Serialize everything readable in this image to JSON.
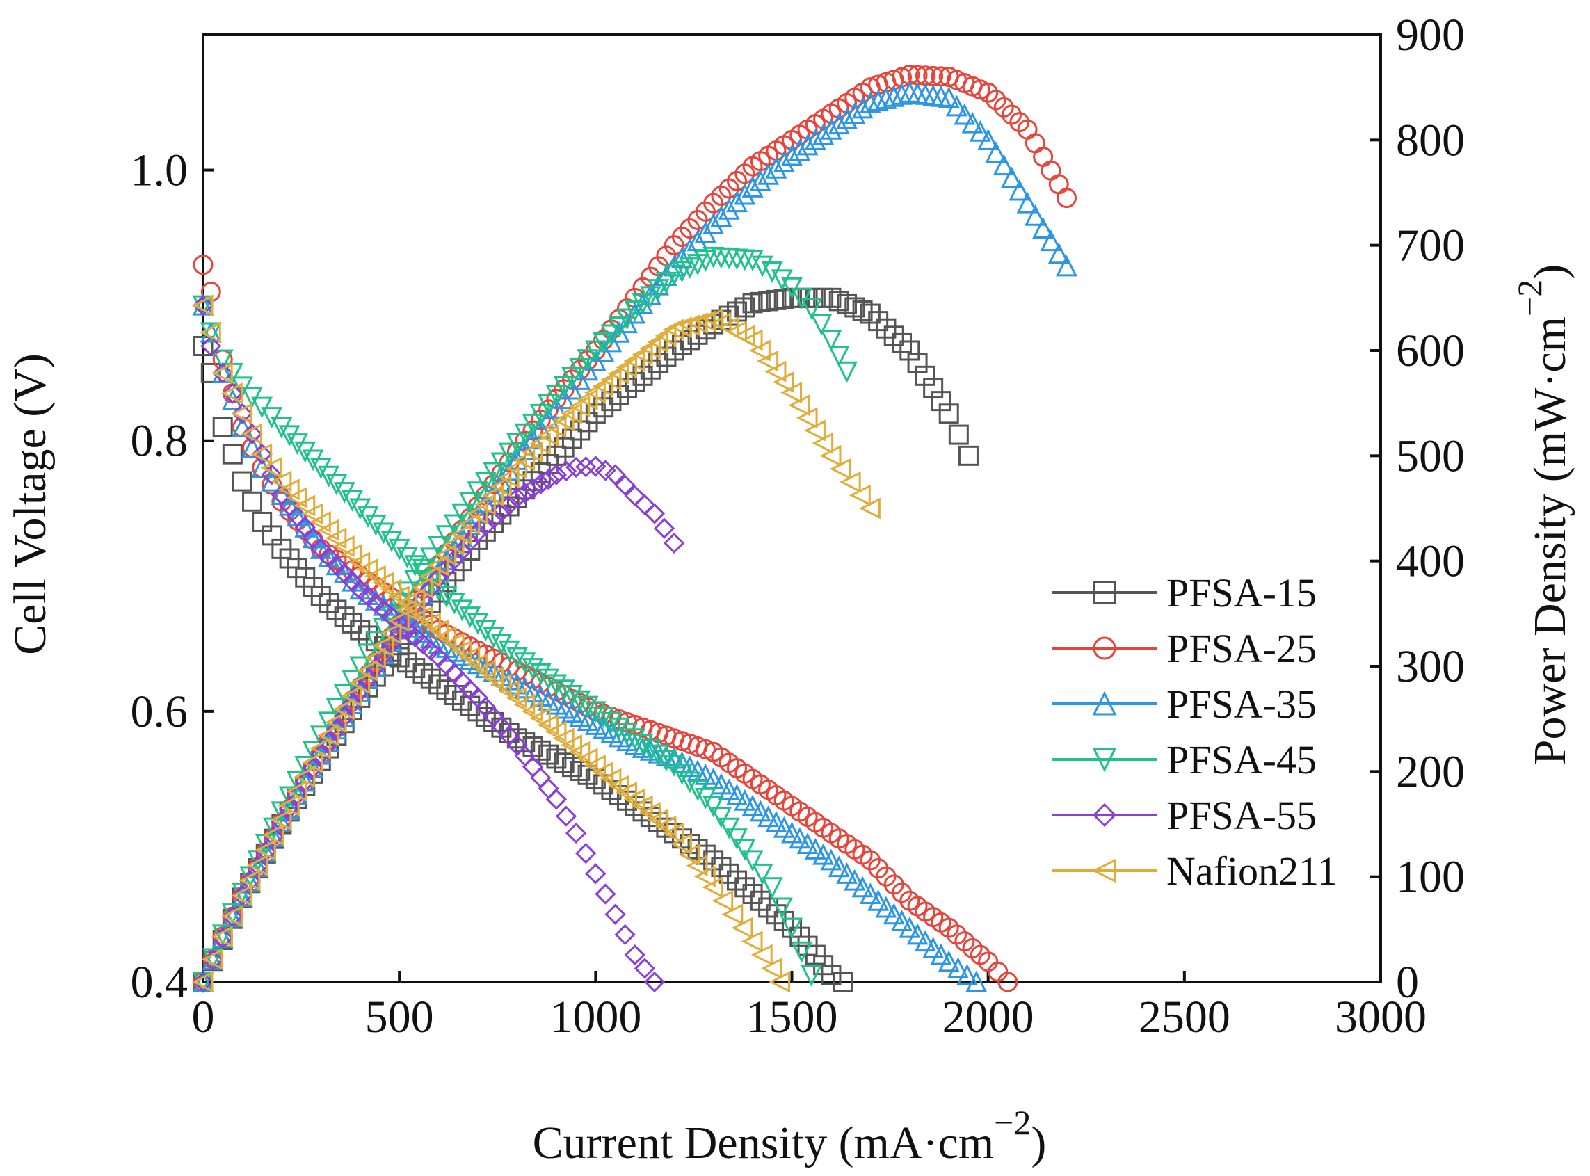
{
  "chart_data": {
    "type": "scatter",
    "x_axis": {
      "label_main": "Current Density (mA·cm",
      "label_sup": "−2",
      "label_tail": ")",
      "range": [
        0,
        3000
      ],
      "ticks": [
        "0",
        "500",
        "1000",
        "1500",
        "2000",
        "2500",
        "3000"
      ],
      "tick_values": [
        0,
        500,
        1000,
        1500,
        2000,
        2500,
        3000
      ]
    },
    "y_left": {
      "label": "Cell Voltage (V)",
      "range": [
        0.4,
        1.1
      ],
      "ticks": [
        "0.4",
        "0.6",
        "0.8",
        "1.0"
      ],
      "tick_values": [
        0.4,
        0.6,
        0.8,
        1.0
      ]
    },
    "y_right": {
      "label_main": "Power Density (mW·cm",
      "label_sup": "−2",
      "label_tail": ")",
      "range": [
        0,
        900
      ],
      "ticks": [
        "0",
        "100",
        "200",
        "300",
        "400",
        "500",
        "600",
        "700",
        "800",
        "900"
      ],
      "tick_values": [
        0,
        100,
        200,
        300,
        400,
        500,
        600,
        700,
        800,
        900
      ]
    },
    "grid": false,
    "legend_position": "right-middle",
    "series": [
      {
        "name": "PFSA-15",
        "color": "#555555",
        "marker": "square",
        "polarization": {
          "x": [
            0,
            20,
            50,
            100,
            150,
            200,
            300,
            400,
            500,
            600,
            700,
            800,
            900,
            1000,
            1100,
            1200,
            1300,
            1400,
            1500,
            1560,
            1600,
            1630
          ],
          "y": [
            0.87,
            0.85,
            0.81,
            0.77,
            0.74,
            0.72,
            0.685,
            0.66,
            0.64,
            0.62,
            0.6,
            0.58,
            0.565,
            0.55,
            0.53,
            0.51,
            0.49,
            0.465,
            0.44,
            0.42,
            0.405,
            0.4
          ]
        },
        "power": {
          "x": [
            0,
            50,
            100,
            200,
            300,
            400,
            500,
            600,
            700,
            800,
            900,
            1000,
            1100,
            1200,
            1300,
            1400,
            1500,
            1600,
            1700,
            1800,
            1900,
            1950
          ],
          "y": [
            0,
            40,
            80,
            150,
            210,
            270,
            320,
            370,
            420,
            460,
            500,
            540,
            570,
            600,
            625,
            645,
            650,
            650,
            635,
            600,
            540,
            500
          ]
        }
      },
      {
        "name": "PFSA-25",
        "color": "#e8443a",
        "marker": "circle",
        "polarization": {
          "x": [
            0,
            20,
            50,
            100,
            150,
            200,
            300,
            400,
            500,
            600,
            700,
            800,
            900,
            1000,
            1100,
            1200,
            1300,
            1400,
            1500,
            1600,
            1700,
            1800,
            1900,
            2000,
            2050
          ],
          "y": [
            0.93,
            0.91,
            0.86,
            0.81,
            0.78,
            0.755,
            0.72,
            0.7,
            0.68,
            0.66,
            0.645,
            0.63,
            0.615,
            0.6,
            0.59,
            0.58,
            0.57,
            0.55,
            0.53,
            0.51,
            0.49,
            0.46,
            0.44,
            0.415,
            0.4
          ]
        },
        "power": {
          "x": [
            0,
            50,
            100,
            200,
            300,
            400,
            500,
            600,
            700,
            800,
            900,
            1000,
            1100,
            1200,
            1300,
            1400,
            1500,
            1600,
            1700,
            1800,
            1900,
            2000,
            2100,
            2200
          ],
          "y": [
            0,
            43,
            81,
            151,
            216,
            280,
            340,
            396,
            452,
            504,
            554,
            600,
            650,
            700,
            740,
            775,
            800,
            825,
            850,
            862,
            860,
            845,
            810,
            745
          ]
        }
      },
      {
        "name": "PFSA-35",
        "color": "#2b95e6",
        "marker": "triangle-up",
        "polarization": {
          "x": [
            0,
            20,
            50,
            100,
            150,
            200,
            300,
            400,
            500,
            600,
            700,
            800,
            900,
            1000,
            1100,
            1200,
            1300,
            1400,
            1500,
            1600,
            1700,
            1800,
            1900,
            1970
          ],
          "y": [
            0.9,
            0.88,
            0.85,
            0.81,
            0.78,
            0.76,
            0.72,
            0.69,
            0.67,
            0.65,
            0.635,
            0.62,
            0.605,
            0.59,
            0.575,
            0.565,
            0.55,
            0.53,
            0.51,
            0.49,
            0.465,
            0.44,
            0.415,
            0.4
          ]
        },
        "power": {
          "x": [
            0,
            50,
            100,
            200,
            300,
            400,
            500,
            600,
            700,
            800,
            900,
            1000,
            1100,
            1200,
            1300,
            1400,
            1500,
            1600,
            1700,
            1800,
            1900,
            2000,
            2100,
            2200
          ],
          "y": [
            0,
            42,
            81,
            152,
            216,
            276,
            335,
            390,
            445,
            496,
            545,
            590,
            635,
            680,
            720,
            755,
            785,
            810,
            835,
            845,
            840,
            800,
            740,
            680
          ]
        }
      },
      {
        "name": "PFSA-45",
        "color": "#1fc28a",
        "marker": "triangle-down",
        "polarization": {
          "x": [
            0,
            20,
            50,
            100,
            150,
            200,
            300,
            400,
            500,
            600,
            700,
            800,
            900,
            1000,
            1100,
            1200,
            1300,
            1400,
            1450,
            1500,
            1550
          ],
          "y": [
            0.9,
            0.88,
            0.86,
            0.84,
            0.825,
            0.81,
            0.78,
            0.75,
            0.72,
            0.69,
            0.665,
            0.64,
            0.62,
            0.6,
            0.58,
            0.56,
            0.53,
            0.49,
            0.47,
            0.44,
            0.405
          ]
        },
        "power": {
          "x": [
            0,
            50,
            100,
            200,
            300,
            400,
            500,
            600,
            700,
            800,
            900,
            1000,
            1100,
            1200,
            1300,
            1400,
            1450,
            1500,
            1550,
            1600,
            1640
          ],
          "y": [
            0,
            45,
            85,
            162,
            234,
            300,
            360,
            414,
            466,
            512,
            558,
            600,
            638,
            672,
            689,
            686,
            675,
            660,
            640,
            610,
            580
          ]
        }
      },
      {
        "name": "PFSA-55",
        "color": "#8a3fd9",
        "marker": "diamond",
        "polarization": {
          "x": [
            0,
            20,
            50,
            100,
            150,
            200,
            300,
            400,
            500,
            600,
            700,
            800,
            900,
            950,
            1000,
            1050,
            1100,
            1150
          ],
          "y": [
            0.9,
            0.87,
            0.85,
            0.82,
            0.79,
            0.76,
            0.72,
            0.69,
            0.665,
            0.64,
            0.61,
            0.575,
            0.535,
            0.51,
            0.48,
            0.45,
            0.42,
            0.4
          ]
        },
        "power": {
          "x": [
            0,
            50,
            100,
            200,
            300,
            400,
            500,
            600,
            700,
            800,
            900,
            950,
            1000,
            1050,
            1100,
            1150,
            1200
          ],
          "y": [
            0,
            42,
            82,
            152,
            216,
            276,
            333,
            384,
            427,
            460,
            482,
            489,
            490,
            482,
            462,
            445,
            417
          ]
        }
      },
      {
        "name": "Nafion211",
        "color": "#e0ad3a",
        "marker": "triangle-left",
        "polarization": {
          "x": [
            0,
            20,
            50,
            100,
            150,
            200,
            300,
            400,
            500,
            600,
            700,
            800,
            900,
            1000,
            1100,
            1200,
            1300,
            1350,
            1400,
            1450,
            1470
          ],
          "y": [
            0.9,
            0.88,
            0.85,
            0.82,
            0.79,
            0.77,
            0.74,
            0.71,
            0.685,
            0.66,
            0.635,
            0.61,
            0.585,
            0.56,
            0.535,
            0.51,
            0.47,
            0.45,
            0.43,
            0.41,
            0.4
          ]
        },
        "power": {
          "x": [
            0,
            50,
            100,
            200,
            300,
            400,
            500,
            600,
            700,
            800,
            900,
            1000,
            1100,
            1200,
            1300,
            1400,
            1500,
            1600,
            1650,
            1700
          ],
          "y": [
            0,
            43,
            82,
            154,
            222,
            284,
            343,
            396,
            445,
            488,
            527,
            560,
            590,
            620,
            630,
            610,
            560,
            500,
            475,
            450
          ]
        }
      }
    ]
  }
}
